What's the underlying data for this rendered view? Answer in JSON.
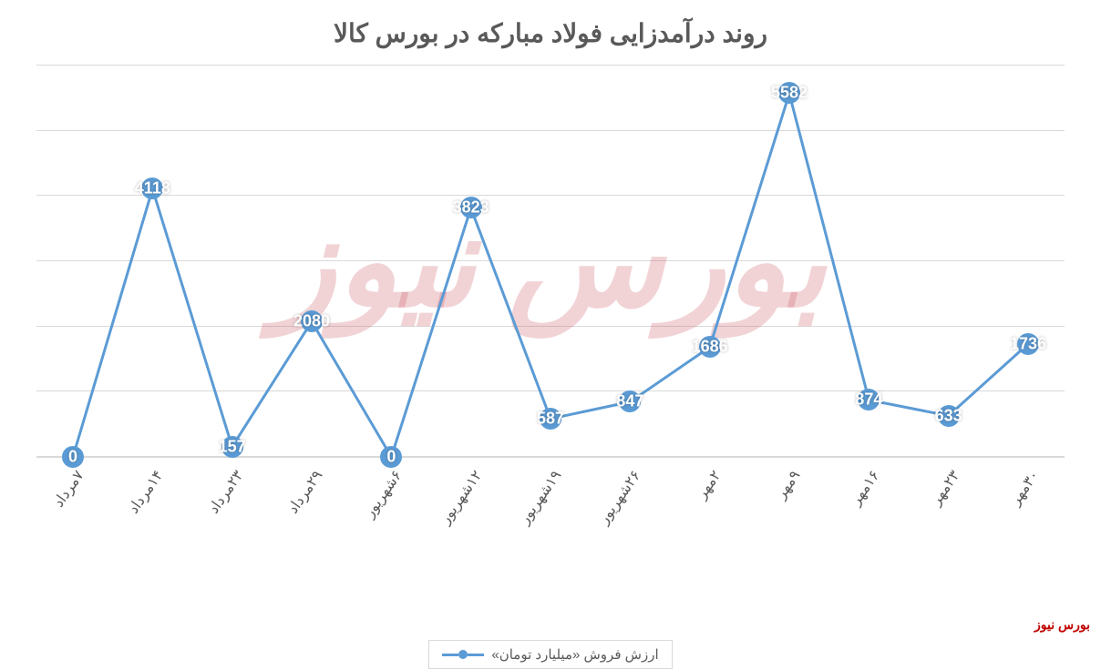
{
  "chart": {
    "type": "line",
    "title": "روند درآمدزایی فولاد مبارکه در بورس کالا",
    "title_fontsize": 28,
    "title_color": "#595959",
    "background_color": "#ffffff",
    "grid_color": "#d9d9d9",
    "line_color": "#5b9bd5",
    "line_width": 3,
    "marker_color": "#5b9bd5",
    "marker_size": 24,
    "data_label_color": "#ffffff",
    "data_label_fontsize": 18,
    "x_label_fontsize": 16,
    "x_label_color": "#595959",
    "x_label_rotation": -55,
    "ylim": [
      0,
      6000
    ],
    "ytick_step": 1000,
    "categories": [
      "۷مرداد",
      "۱۴مرداد",
      "۲۳مرداد",
      "۲۹مرداد",
      "۶شهریور",
      "۱۲شهریور",
      "۱۹شهریور",
      "۲۶شهریور",
      "۲مهر",
      "۹مهر",
      "۱۶مهر",
      "۲۳مهر",
      "۳۰مهر"
    ],
    "values": [
      0,
      4118,
      157,
      2080,
      0,
      3823,
      587,
      847,
      1686,
      5582,
      874,
      633,
      1736
    ],
    "legend": {
      "label": "ارزش فروش «میلیارد تومان»",
      "position": "bottom",
      "border_color": "#d9d9d9"
    }
  },
  "watermark": {
    "corner_text": "بورس نیوز",
    "corner_color": "#c00000",
    "bg_text": "بورس نیوز",
    "bg_color": "rgba(200,80,90,0.25)"
  }
}
